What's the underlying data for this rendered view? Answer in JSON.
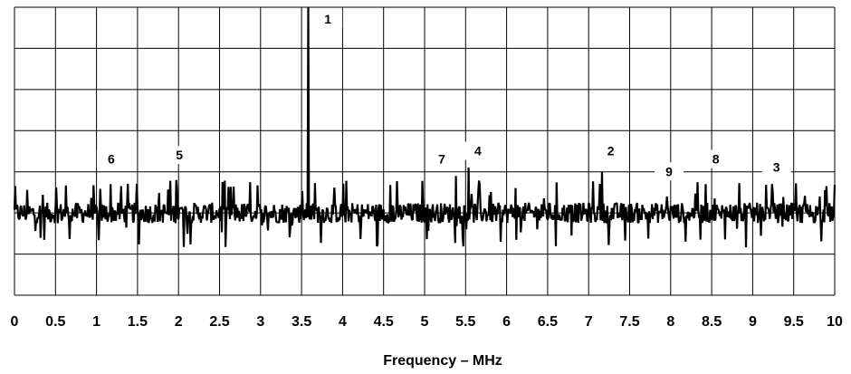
{
  "chart_data": {
    "type": "line",
    "title": "",
    "xlabel": "Frequency – MHz",
    "ylabel": "",
    "xlim": [
      0,
      10
    ],
    "ylim": [
      0,
      7
    ],
    "grid": true,
    "x_ticks": [
      0,
      0.5,
      1,
      1.5,
      2,
      2.5,
      3,
      3.5,
      4,
      4.5,
      5,
      5.5,
      6,
      6.5,
      7,
      7.5,
      8,
      8.5,
      9,
      9.5,
      10
    ],
    "x_tick_labels": [
      "0",
      "0.5",
      "1",
      "1.5",
      "2",
      "2.5",
      "3",
      "3.5",
      "4",
      "4.5",
      "5",
      "5.5",
      "6",
      "6.5",
      "7",
      "7.5",
      "8",
      "8.5",
      "9",
      "9.5",
      "10"
    ],
    "noise_floor": 2.0,
    "peaks": [
      {
        "label": "1",
        "x": 3.58,
        "y": 7.0
      },
      {
        "label": "2",
        "x": 7.16,
        "y": 3.0
      },
      {
        "label": "3",
        "x": 9.25,
        "y": 2.5
      },
      {
        "label": "4",
        "x": 5.54,
        "y": 3.1
      },
      {
        "label": "5",
        "x": 1.97,
        "y": 2.8
      },
      {
        "label": "6",
        "x": 1.17,
        "y": 2.7
      },
      {
        "label": "7",
        "x": 5.38,
        "y": 2.9
      },
      {
        "label": "8",
        "x": 8.43,
        "y": 2.7
      },
      {
        "label": "9",
        "x": 7.95,
        "y": 2.4
      }
    ],
    "marker_labels": [
      {
        "label": "1",
        "x": 3.82,
        "y": 6.6
      },
      {
        "label": "2",
        "x": 7.27,
        "y": 3.4
      },
      {
        "label": "3",
        "x": 9.29,
        "y": 3.0
      },
      {
        "label": "4",
        "x": 5.65,
        "y": 3.4
      },
      {
        "label": "5",
        "x": 2.01,
        "y": 3.3
      },
      {
        "label": "6",
        "x": 1.18,
        "y": 3.2
      },
      {
        "label": "7",
        "x": 5.21,
        "y": 3.2
      },
      {
        "label": "8",
        "x": 8.55,
        "y": 3.2
      },
      {
        "label": "9",
        "x": 7.98,
        "y": 2.9
      }
    ]
  }
}
